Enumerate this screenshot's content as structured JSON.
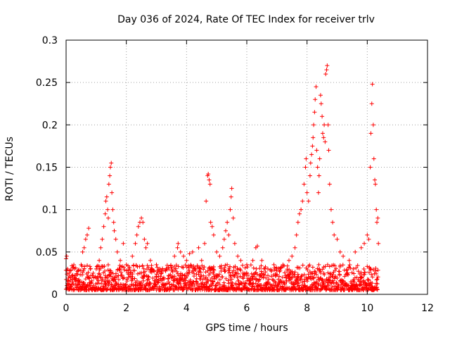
{
  "chart_data": {
    "type": "scatter",
    "title": "Day 036 of 2024, Rate Of TEC Index for receiver trlv",
    "xlabel": "GPS time / hours",
    "ylabel": "ROTI / TECUs",
    "xlim": [
      0,
      12
    ],
    "ylim": [
      0,
      0.3
    ],
    "xticks": [
      0,
      2,
      4,
      6,
      8,
      10,
      12
    ],
    "yticks": [
      0,
      0.05,
      0.1,
      0.15,
      0.2,
      0.25,
      0.3
    ],
    "xtick_labels": [
      "0",
      "2",
      "4",
      "6",
      "8",
      "10",
      "12"
    ],
    "ytick_labels": [
      "0",
      "0.05",
      "0.1",
      "0.15",
      "0.2",
      "0.25",
      "0.3"
    ],
    "grid": true,
    "marker": "+",
    "color": "#ff0000",
    "series": [
      {
        "name": "ROTI",
        "points": [
          [
            0.0,
            0.042
          ],
          [
            0.02,
            0.045
          ],
          [
            0.05,
            0.03
          ],
          [
            0.1,
            0.025
          ],
          [
            0.15,
            0.02
          ],
          [
            0.2,
            0.018
          ],
          [
            0.3,
            0.022
          ],
          [
            0.4,
            0.028
          ],
          [
            0.5,
            0.035
          ],
          [
            0.55,
            0.05
          ],
          [
            0.6,
            0.055
          ],
          [
            0.65,
            0.065
          ],
          [
            0.7,
            0.07
          ],
          [
            0.75,
            0.078
          ],
          [
            0.8,
            0.03
          ],
          [
            0.9,
            0.025
          ],
          [
            1.0,
            0.03
          ],
          [
            1.1,
            0.04
          ],
          [
            1.15,
            0.055
          ],
          [
            1.2,
            0.065
          ],
          [
            1.25,
            0.08
          ],
          [
            1.3,
            0.095
          ],
          [
            1.32,
            0.11
          ],
          [
            1.35,
            0.115
          ],
          [
            1.38,
            0.1
          ],
          [
            1.4,
            0.09
          ],
          [
            1.42,
            0.13
          ],
          [
            1.45,
            0.14
          ],
          [
            1.47,
            0.15
          ],
          [
            1.5,
            0.155
          ],
          [
            1.52,
            0.12
          ],
          [
            1.55,
            0.1
          ],
          [
            1.58,
            0.085
          ],
          [
            1.6,
            0.075
          ],
          [
            1.65,
            0.065
          ],
          [
            1.7,
            0.05
          ],
          [
            1.8,
            0.04
          ],
          [
            1.9,
            0.06
          ],
          [
            2.0,
            0.035
          ],
          [
            2.1,
            0.03
          ],
          [
            2.2,
            0.045
          ],
          [
            2.3,
            0.06
          ],
          [
            2.35,
            0.07
          ],
          [
            2.4,
            0.08
          ],
          [
            2.45,
            0.085
          ],
          [
            2.5,
            0.09
          ],
          [
            2.55,
            0.085
          ],
          [
            2.6,
            0.065
          ],
          [
            2.65,
            0.055
          ],
          [
            2.7,
            0.06
          ],
          [
            2.8,
            0.04
          ],
          [
            3.0,
            0.035
          ],
          [
            3.2,
            0.03
          ],
          [
            3.4,
            0.032
          ],
          [
            3.6,
            0.045
          ],
          [
            3.7,
            0.055
          ],
          [
            3.72,
            0.06
          ],
          [
            3.8,
            0.05
          ],
          [
            3.9,
            0.045
          ],
          [
            4.0,
            0.04
          ],
          [
            4.1,
            0.048
          ],
          [
            4.2,
            0.05
          ],
          [
            4.4,
            0.055
          ],
          [
            4.5,
            0.04
          ],
          [
            4.6,
            0.06
          ],
          [
            4.65,
            0.11
          ],
          [
            4.7,
            0.14
          ],
          [
            4.72,
            0.142
          ],
          [
            4.75,
            0.135
          ],
          [
            4.78,
            0.13
          ],
          [
            4.8,
            0.085
          ],
          [
            4.85,
            0.08
          ],
          [
            4.9,
            0.07
          ],
          [
            5.0,
            0.05
          ],
          [
            5.1,
            0.045
          ],
          [
            5.2,
            0.055
          ],
          [
            5.25,
            0.065
          ],
          [
            5.3,
            0.075
          ],
          [
            5.35,
            0.085
          ],
          [
            5.4,
            0.07
          ],
          [
            5.45,
            0.1
          ],
          [
            5.48,
            0.115
          ],
          [
            5.5,
            0.125
          ],
          [
            5.55,
            0.09
          ],
          [
            5.6,
            0.06
          ],
          [
            5.7,
            0.045
          ],
          [
            5.8,
            0.04
          ],
          [
            6.0,
            0.035
          ],
          [
            6.2,
            0.04
          ],
          [
            6.3,
            0.055
          ],
          [
            6.35,
            0.057
          ],
          [
            6.5,
            0.04
          ],
          [
            6.7,
            0.03
          ],
          [
            6.9,
            0.035
          ],
          [
            7.0,
            0.03
          ],
          [
            7.2,
            0.035
          ],
          [
            7.4,
            0.04
          ],
          [
            7.5,
            0.045
          ],
          [
            7.6,
            0.055
          ],
          [
            7.65,
            0.07
          ],
          [
            7.7,
            0.085
          ],
          [
            7.75,
            0.095
          ],
          [
            7.8,
            0.1
          ],
          [
            7.85,
            0.11
          ],
          [
            7.9,
            0.13
          ],
          [
            7.95,
            0.15
          ],
          [
            7.97,
            0.16
          ],
          [
            8.0,
            0.12
          ],
          [
            8.05,
            0.11
          ],
          [
            8.1,
            0.14
          ],
          [
            8.12,
            0.155
          ],
          [
            8.15,
            0.165
          ],
          [
            8.18,
            0.175
          ],
          [
            8.2,
            0.185
          ],
          [
            8.22,
            0.2
          ],
          [
            8.25,
            0.215
          ],
          [
            8.27,
            0.23
          ],
          [
            8.3,
            0.245
          ],
          [
            8.32,
            0.17
          ],
          [
            8.35,
            0.15
          ],
          [
            8.38,
            0.12
          ],
          [
            8.4,
            0.14
          ],
          [
            8.42,
            0.16
          ],
          [
            8.45,
            0.235
          ],
          [
            8.47,
            0.225
          ],
          [
            8.5,
            0.21
          ],
          [
            8.52,
            0.19
          ],
          [
            8.55,
            0.185
          ],
          [
            8.57,
            0.2
          ],
          [
            8.6,
            0.18
          ],
          [
            8.62,
            0.26
          ],
          [
            8.65,
            0.265
          ],
          [
            8.67,
            0.27
          ],
          [
            8.7,
            0.2
          ],
          [
            8.72,
            0.17
          ],
          [
            8.75,
            0.13
          ],
          [
            8.8,
            0.1
          ],
          [
            8.85,
            0.085
          ],
          [
            8.9,
            0.07
          ],
          [
            9.0,
            0.065
          ],
          [
            9.1,
            0.05
          ],
          [
            9.2,
            0.045
          ],
          [
            9.4,
            0.04
          ],
          [
            9.6,
            0.05
          ],
          [
            9.8,
            0.055
          ],
          [
            9.9,
            0.06
          ],
          [
            10.0,
            0.07
          ],
          [
            10.05,
            0.065
          ],
          [
            10.1,
            0.15
          ],
          [
            10.12,
            0.19
          ],
          [
            10.15,
            0.225
          ],
          [
            10.17,
            0.248
          ],
          [
            10.2,
            0.2
          ],
          [
            10.22,
            0.16
          ],
          [
            10.25,
            0.135
          ],
          [
            10.27,
            0.13
          ],
          [
            10.3,
            0.1
          ],
          [
            10.32,
            0.085
          ],
          [
            10.35,
            0.09
          ],
          [
            10.37,
            0.06
          ]
        ]
      }
    ],
    "baseline_band": {
      "x_range": [
        0.0,
        10.35
      ],
      "typical_range": [
        0.005,
        0.035
      ],
      "note_hours_dense": true
    }
  }
}
